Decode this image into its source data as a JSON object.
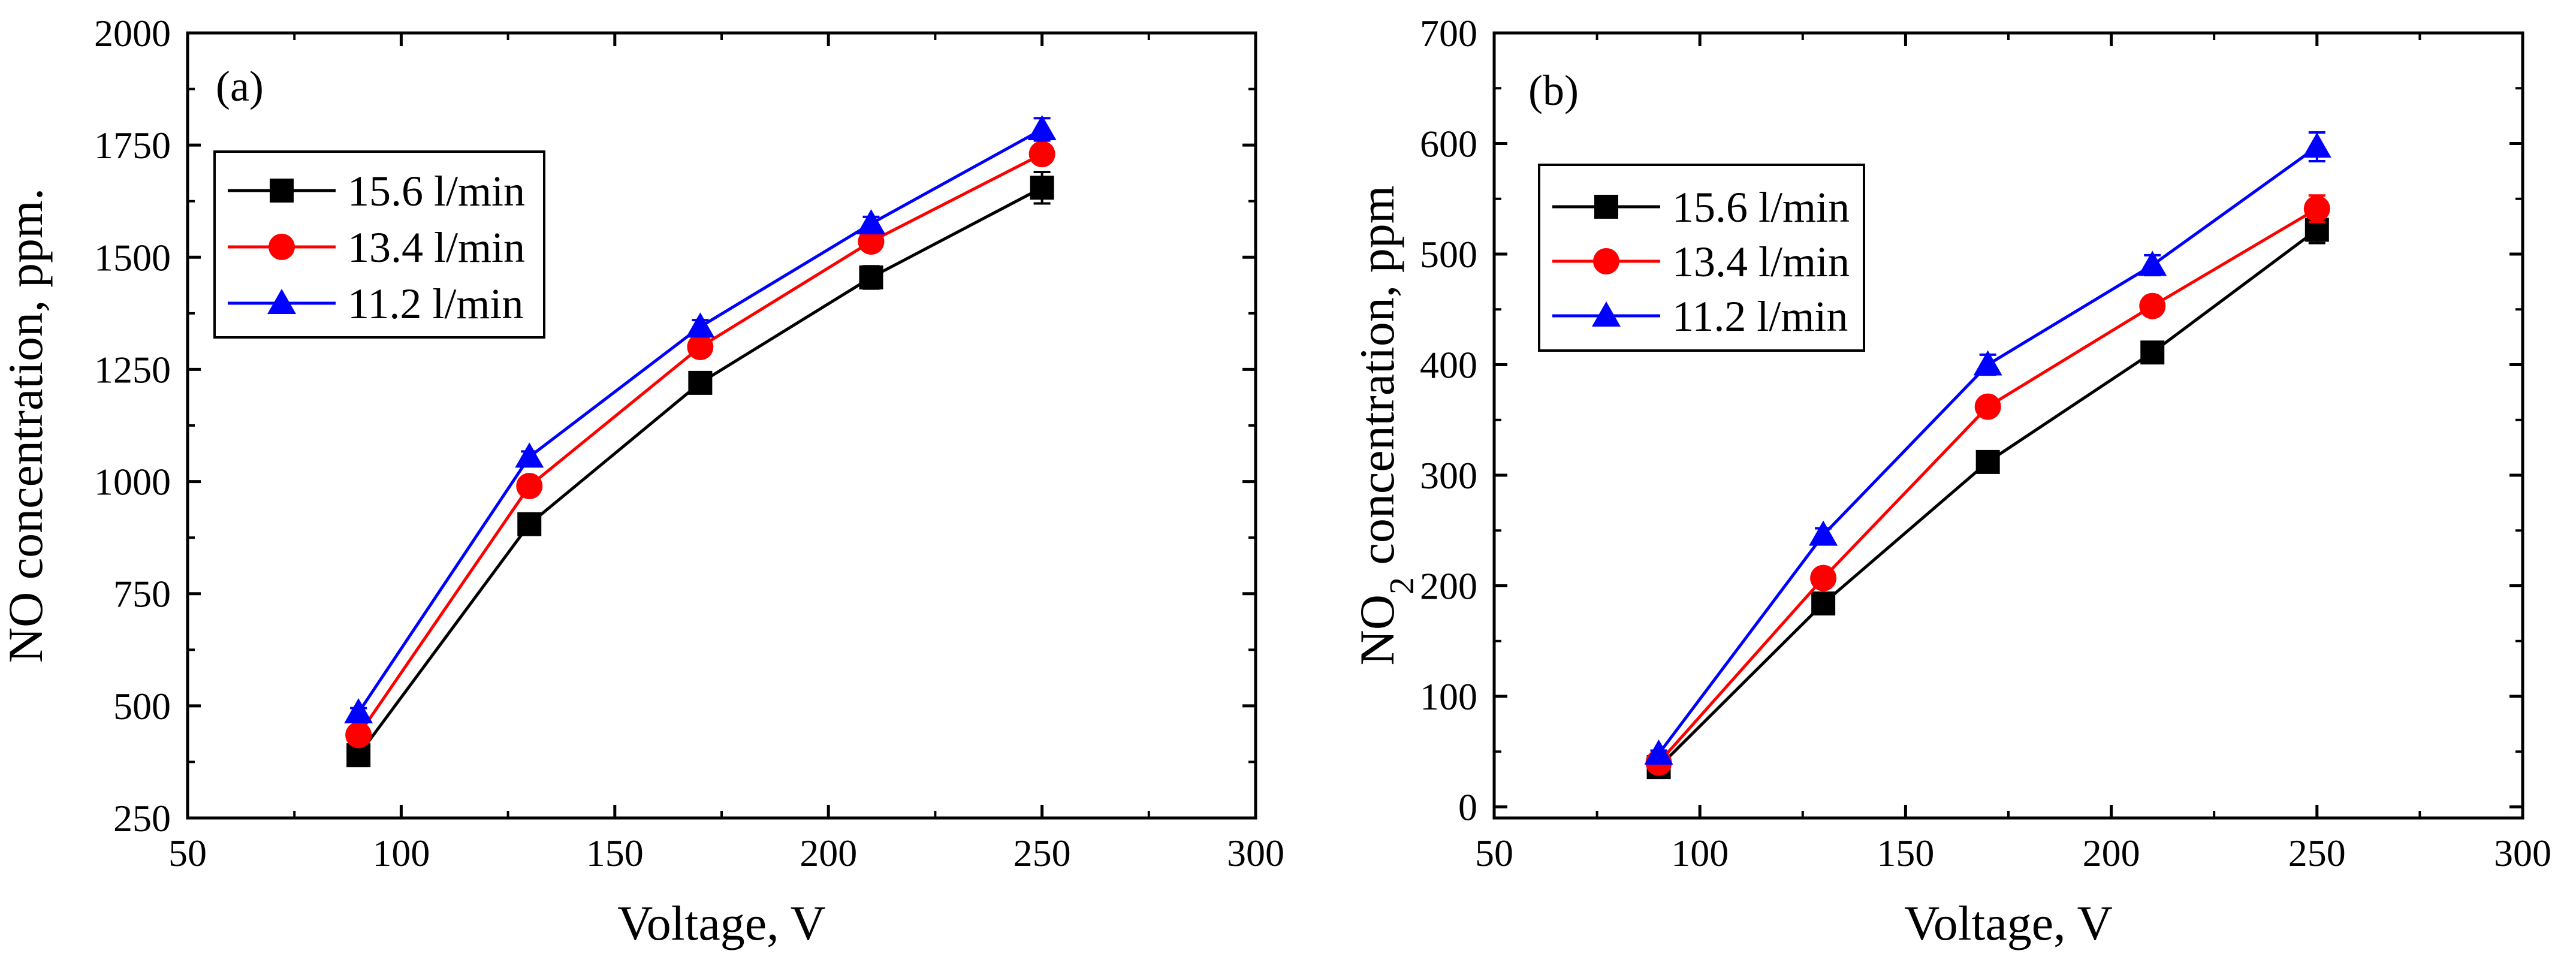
{
  "chart_data": [
    {
      "type": "line",
      "panel_label": "(a)",
      "xlabel": "Voltage, V",
      "ylabel": "NO concentration, ppm.",
      "xlim": [
        50,
        300
      ],
      "ylim": [
        250,
        2000
      ],
      "xticks": [
        50,
        100,
        150,
        200,
        250,
        300
      ],
      "yticks": [
        250,
        500,
        750,
        1000,
        1250,
        1500,
        1750,
        2000
      ],
      "legend_position": "top-left",
      "x": [
        90,
        130,
        170,
        210,
        250
      ],
      "series": [
        {
          "name": "15.6 l/min",
          "color": "#000000",
          "marker": "square",
          "values": [
            390,
            905,
            1220,
            1455,
            1655
          ],
          "errors": [
            12,
            12,
            15,
            25,
            35
          ]
        },
        {
          "name": "13.4 l/min",
          "color": "#ff0000",
          "marker": "circle",
          "values": [
            435,
            990,
            1300,
            1535,
            1730
          ],
          "errors": [
            10,
            12,
            20,
            15,
            20
          ]
        },
        {
          "name": "11.2 l/min",
          "color": "#0000ff",
          "marker": "triangle",
          "values": [
            485,
            1055,
            1345,
            1575,
            1785
          ],
          "errors": [
            10,
            12,
            15,
            15,
            25
          ]
        }
      ]
    },
    {
      "type": "line",
      "panel_label": "(b)",
      "xlabel": "Voltage, V",
      "ylabel_main": "NO",
      "ylabel_sub": "2",
      "ylabel_rest": " concentration, ppm",
      "xlim": [
        50,
        300
      ],
      "ylim": [
        -10,
        700
      ],
      "xticks": [
        50,
        100,
        150,
        200,
        250,
        300
      ],
      "yticks": [
        0,
        100,
        200,
        300,
        400,
        500,
        600,
        700
      ],
      "legend_position": "top-left",
      "x": [
        90,
        130,
        170,
        210,
        250
      ],
      "series": [
        {
          "name": "15.6 l/min",
          "color": "#000000",
          "marker": "square",
          "values": [
            36,
            184,
            312,
            411,
            522
          ],
          "errors": [
            3,
            5,
            7,
            7,
            12
          ]
        },
        {
          "name": "13.4 l/min",
          "color": "#ff0000",
          "marker": "circle",
          "values": [
            40,
            207,
            362,
            453,
            541
          ],
          "errors": [
            3,
            5,
            8,
            7,
            12
          ]
        },
        {
          "name": "11.2 l/min",
          "color": "#0000ff",
          "marker": "triangle",
          "values": [
            48,
            246,
            400,
            490,
            597
          ],
          "errors": [
            3,
            6,
            9,
            9,
            13
          ]
        }
      ]
    }
  ]
}
